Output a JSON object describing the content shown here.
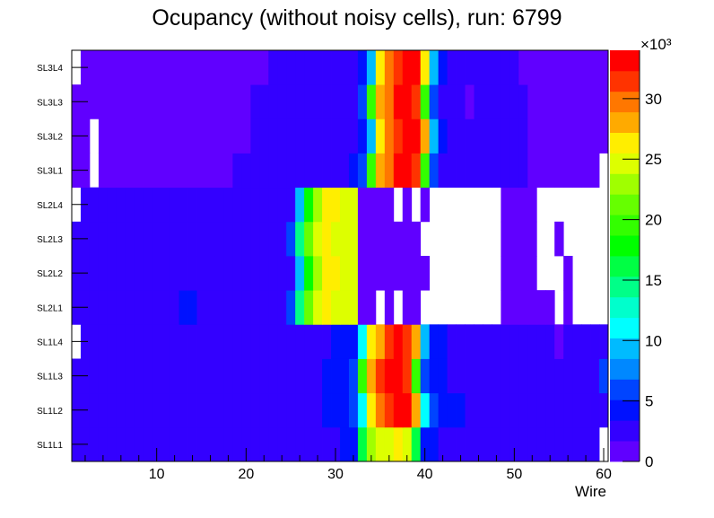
{
  "chart_data": {
    "type": "heatmap",
    "title": "Ocupancy (without noisy cells), run: 6799",
    "xlabel": "Wire",
    "ylabel": "",
    "xlim": [
      0.5,
      60.5
    ],
    "x_ticks": [
      "10",
      "20",
      "30",
      "40",
      "50",
      "60"
    ],
    "z_unit_label": "×10³",
    "zlim": [
      0,
      34
    ],
    "z_ticks": [
      "0",
      "5",
      "10",
      "15",
      "20",
      "25",
      "30"
    ],
    "palette": [
      "#6000ff",
      "#3300ff",
      "#0011ff",
      "#0044ff",
      "#0088ff",
      "#00bbff",
      "#00ffff",
      "#00ffcc",
      "#00ff88",
      "#00ff44",
      "#00ff00",
      "#33ff00",
      "#66ff00",
      "#a0ff00",
      "#ddff00",
      "#ffee00",
      "#ffaa00",
      "#ff7700",
      "#ff3300",
      "#ff0000"
    ],
    "value_encoding": "run-length per layer: [occupancy in thousands, number of consecutive wires] starting at wire 1; 0 = empty",
    "layers": [
      {
        "name": "SL1L1",
        "runs": [
          [
            2.6,
            30
          ],
          [
            4.3,
            2
          ],
          [
            16.2,
            1
          ],
          [
            23.0,
            1
          ],
          [
            24.7,
            2
          ],
          [
            26.4,
            1
          ],
          [
            24.7,
            1
          ],
          [
            16.2,
            1
          ],
          [
            4.3,
            2
          ],
          [
            2.6,
            18
          ],
          [
            0,
            1
          ]
        ]
      },
      {
        "name": "SL1L2",
        "runs": [
          [
            2.6,
            28
          ],
          [
            4.3,
            3
          ],
          [
            6.0,
            1
          ],
          [
            11.1,
            1
          ],
          [
            26.4,
            1
          ],
          [
            29.8,
            1
          ],
          [
            31.5,
            1
          ],
          [
            33.2,
            2
          ],
          [
            28.1,
            1
          ],
          [
            11.1,
            1
          ],
          [
            6.0,
            1
          ],
          [
            4.3,
            3
          ],
          [
            2.6,
            16
          ]
        ]
      },
      {
        "name": "SL1L3",
        "runs": [
          [
            2.6,
            28
          ],
          [
            4.3,
            3
          ],
          [
            6.0,
            1
          ],
          [
            19.6,
            1
          ],
          [
            28.1,
            1
          ],
          [
            31.5,
            1
          ],
          [
            33.2,
            2
          ],
          [
            31.5,
            1
          ],
          [
            19.6,
            1
          ],
          [
            6.0,
            1
          ],
          [
            4.3,
            2
          ],
          [
            2.6,
            17
          ],
          [
            6.0,
            1
          ]
        ]
      },
      {
        "name": "SL1L4",
        "runs": [
          [
            0,
            1
          ],
          [
            2.6,
            28
          ],
          [
            4.3,
            3
          ],
          [
            11.1,
            1
          ],
          [
            26.4,
            1
          ],
          [
            28.1,
            1
          ],
          [
            31.5,
            1
          ],
          [
            33.2,
            1
          ],
          [
            31.5,
            1
          ],
          [
            28.1,
            1
          ],
          [
            9.4,
            1
          ],
          [
            4.3,
            2
          ],
          [
            2.6,
            12
          ],
          [
            0.9,
            1
          ],
          [
            2.6,
            5
          ]
        ]
      },
      {
        "name": "SL2L1",
        "runs": [
          [
            2.6,
            12
          ],
          [
            4.3,
            2
          ],
          [
            2.6,
            10
          ],
          [
            6.0,
            1
          ],
          [
            14.5,
            1
          ],
          [
            21.3,
            1
          ],
          [
            24.7,
            1
          ],
          [
            26.4,
            1
          ],
          [
            24.7,
            3
          ],
          [
            0.9,
            2
          ],
          [
            0,
            1
          ],
          [
            0.9,
            1
          ],
          [
            0,
            1
          ],
          [
            0.9,
            2
          ],
          [
            0,
            9
          ],
          [
            0.9,
            6
          ],
          [
            0,
            1
          ],
          [
            0.9,
            1
          ],
          [
            0,
            4
          ]
        ]
      },
      {
        "name": "SL2L2",
        "runs": [
          [
            2.6,
            25
          ],
          [
            9.4,
            1
          ],
          [
            17.9,
            1
          ],
          [
            23.0,
            1
          ],
          [
            26.4,
            2
          ],
          [
            24.7,
            2
          ],
          [
            0.9,
            8
          ],
          [
            0,
            8
          ],
          [
            0.9,
            4
          ],
          [
            0,
            3
          ],
          [
            0.9,
            1
          ],
          [
            0,
            4
          ]
        ]
      },
      {
        "name": "SL2L3",
        "runs": [
          [
            2.6,
            24
          ],
          [
            6.0,
            1
          ],
          [
            14.5,
            1
          ],
          [
            21.3,
            1
          ],
          [
            24.7,
            1
          ],
          [
            26.4,
            1
          ],
          [
            24.7,
            3
          ],
          [
            0.9,
            7
          ],
          [
            0,
            9
          ],
          [
            0.9,
            4
          ],
          [
            0,
            2
          ],
          [
            0.9,
            1
          ],
          [
            0,
            5
          ]
        ]
      },
      {
        "name": "SL2L4",
        "runs": [
          [
            0,
            1
          ],
          [
            2.6,
            24
          ],
          [
            9.4,
            1
          ],
          [
            17.9,
            1
          ],
          [
            23.0,
            1
          ],
          [
            26.4,
            2
          ],
          [
            24.7,
            2
          ],
          [
            0.9,
            4
          ],
          [
            0,
            1
          ],
          [
            0.9,
            1
          ],
          [
            0,
            1
          ],
          [
            0.9,
            1
          ],
          [
            0,
            8
          ],
          [
            0.9,
            4
          ],
          [
            0,
            8
          ]
        ]
      },
      {
        "name": "SL3L1",
        "runs": [
          [
            0.9,
            2
          ],
          [
            0,
            1
          ],
          [
            0.9,
            15
          ],
          [
            2.6,
            13
          ],
          [
            4.3,
            1
          ],
          [
            6.0,
            1
          ],
          [
            19.6,
            1
          ],
          [
            28.1,
            1
          ],
          [
            29.8,
            1
          ],
          [
            33.2,
            2
          ],
          [
            31.5,
            1
          ],
          [
            19.6,
            1
          ],
          [
            6.0,
            1
          ],
          [
            2.6,
            10
          ],
          [
            0.9,
            8
          ],
          [
            0,
            1
          ]
        ]
      },
      {
        "name": "SL3L2",
        "runs": [
          [
            0.9,
            2
          ],
          [
            0,
            1
          ],
          [
            0.9,
            17
          ],
          [
            2.6,
            12
          ],
          [
            4.3,
            1
          ],
          [
            9.4,
            1
          ],
          [
            26.4,
            1
          ],
          [
            29.8,
            1
          ],
          [
            31.5,
            1
          ],
          [
            33.2,
            2
          ],
          [
            28.1,
            1
          ],
          [
            9.4,
            1
          ],
          [
            4.3,
            1
          ],
          [
            2.6,
            9
          ],
          [
            0.9,
            9
          ]
        ]
      },
      {
        "name": "SL3L3",
        "runs": [
          [
            0.9,
            20
          ],
          [
            2.6,
            12
          ],
          [
            6.0,
            1
          ],
          [
            19.6,
            1
          ],
          [
            28.1,
            1
          ],
          [
            29.8,
            1
          ],
          [
            33.2,
            2
          ],
          [
            31.5,
            1
          ],
          [
            19.6,
            1
          ],
          [
            6.0,
            1
          ],
          [
            2.6,
            3
          ],
          [
            0.9,
            1
          ],
          [
            2.6,
            6
          ],
          [
            0.9,
            9
          ]
        ]
      },
      {
        "name": "SL3L4",
        "runs": [
          [
            0,
            1
          ],
          [
            0.9,
            21
          ],
          [
            2.6,
            10
          ],
          [
            4.3,
            1
          ],
          [
            9.4,
            1
          ],
          [
            26.4,
            1
          ],
          [
            29.8,
            1
          ],
          [
            31.5,
            1
          ],
          [
            33.2,
            2
          ],
          [
            26.4,
            1
          ],
          [
            9.4,
            1
          ],
          [
            4.3,
            1
          ],
          [
            2.6,
            8
          ],
          [
            0.9,
            10
          ]
        ]
      }
    ]
  }
}
